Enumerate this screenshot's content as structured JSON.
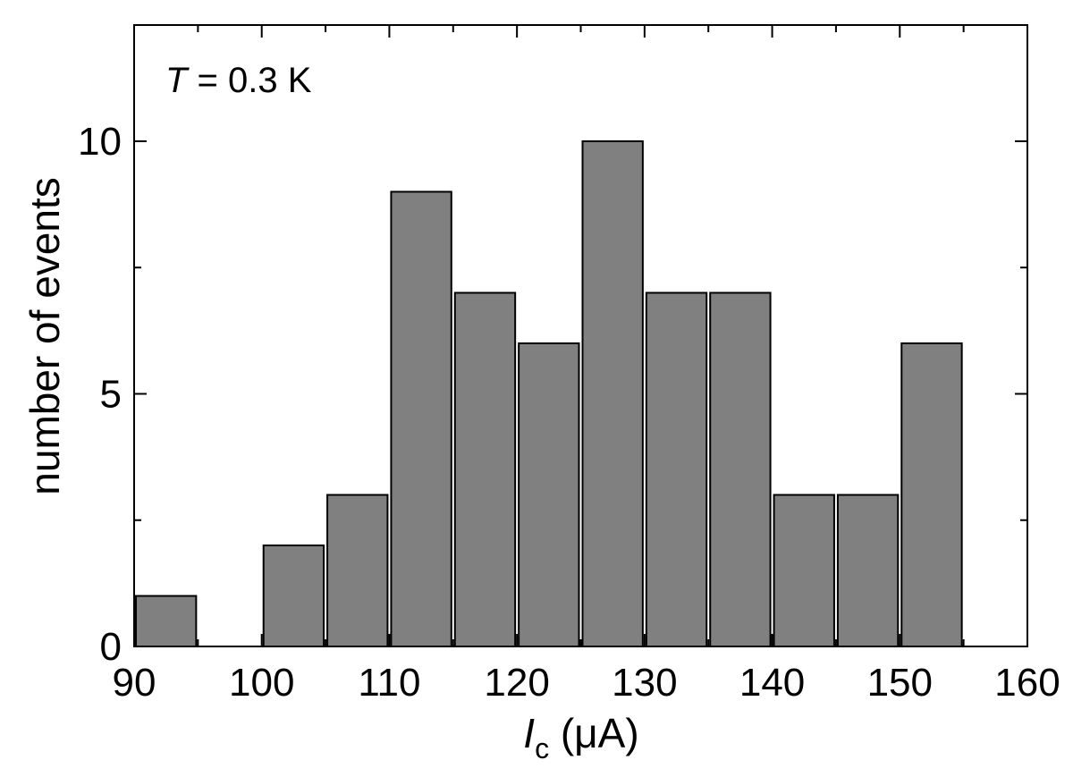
{
  "chart_data": {
    "type": "bar",
    "bin_width": 5,
    "x": [
      90,
      100,
      105,
      110,
      115,
      120,
      125,
      130,
      135,
      140,
      145,
      150
    ],
    "values": [
      1,
      2,
      3,
      9,
      7,
      6,
      10,
      7,
      7,
      3,
      3,
      6
    ],
    "bar_color": "#808080",
    "xlabel": {
      "symbol": "I",
      "subscript": "c",
      "unit": "(μA)"
    },
    "ylabel": "number of events",
    "xlim": [
      90,
      160
    ],
    "ylim": [
      0,
      12.3
    ],
    "x_ticks": [
      "90",
      "100",
      "110",
      "120",
      "130",
      "140",
      "150",
      "160"
    ],
    "y_ticks": [
      "0",
      "5",
      "10"
    ],
    "annotation": {
      "symbol": "T",
      "text": " = 0.3 K"
    },
    "grid": false,
    "legend": "none"
  }
}
